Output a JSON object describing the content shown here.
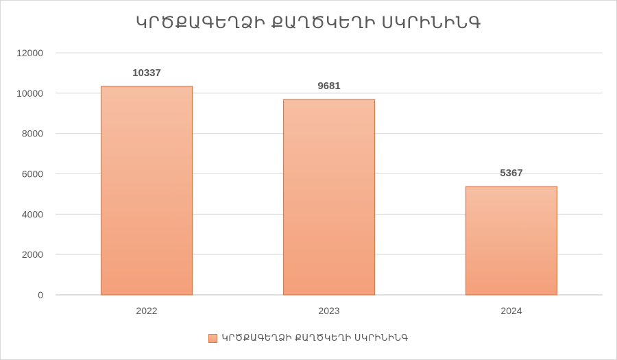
{
  "chart_data": {
    "type": "bar",
    "title": "ԿՐԾՔԱԳԵՂՁԻ ՔԱՂԾԿԵՂԻ ՍԿՐԻՆԻՆԳ",
    "categories": [
      "2022",
      "2023",
      "2024"
    ],
    "series": [
      {
        "name": "ԿՐԾՔԱԳԵՂՁԻ ՔԱՂԾԿԵՂԻ ՍԿՐԻՆԻՆԳ",
        "values": [
          10337,
          9681,
          5367
        ]
      }
    ],
    "data_labels": [
      "10337",
      "9681",
      "5367"
    ],
    "y_ticks": [
      "0",
      "2000",
      "4000",
      "6000",
      "8000",
      "10000",
      "12000"
    ],
    "ylim": [
      0,
      12000
    ],
    "grid": true,
    "legend_position": "bottom",
    "colors": {
      "bar_fill_top": "#f6bfa3",
      "bar_fill_bottom": "#f4a07a",
      "bar_border": "#e8773f"
    }
  }
}
